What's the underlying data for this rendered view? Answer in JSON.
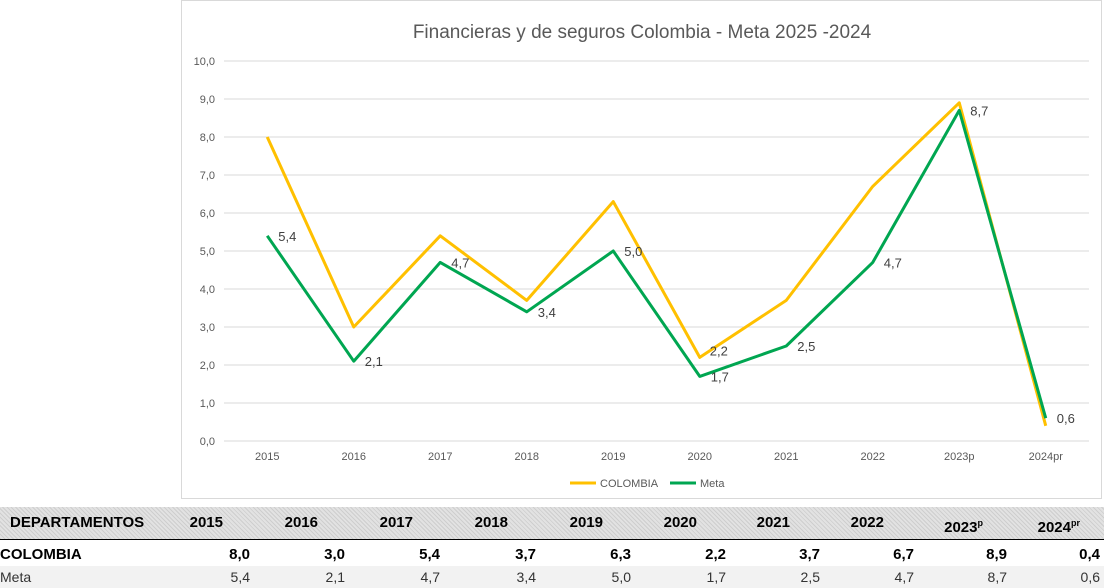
{
  "chart_data": {
    "type": "line",
    "title": "Financieras y de seguros Colombia - Meta 2025 -2024",
    "categories": [
      "2015",
      "2016",
      "2017",
      "2018",
      "2019",
      "2020",
      "2021",
      "2022",
      "2023p",
      "2024pr"
    ],
    "ylim": [
      0,
      10
    ],
    "yticks": [
      "0,0",
      "1,0",
      "2,0",
      "3,0",
      "4,0",
      "5,0",
      "6,0",
      "7,0",
      "8,0",
      "9,0",
      "10,0"
    ],
    "grid": true,
    "legend_position": "bottom",
    "series": [
      {
        "name": "COLOMBIA",
        "color": "#FFC000",
        "values": [
          8.0,
          3.0,
          5.4,
          3.7,
          6.3,
          2.2,
          3.7,
          6.7,
          8.9,
          0.4
        ],
        "labels": [
          "",
          "",
          "",
          "",
          "",
          "2,2",
          "",
          "",
          "",
          ""
        ]
      },
      {
        "name": "Meta",
        "color": "#00A651",
        "values": [
          5.4,
          2.1,
          4.7,
          3.4,
          5.0,
          1.7,
          2.5,
          4.7,
          8.7,
          0.6
        ],
        "labels": [
          "5,4",
          "2,1",
          "4,7",
          "3,4",
          "5,0",
          "1,7",
          "2,5",
          "4,7",
          "8,7",
          "0,6"
        ]
      }
    ]
  },
  "table": {
    "header_label": "DEPARTAMENTOS",
    "years": [
      {
        "base": "2015",
        "sup": ""
      },
      {
        "base": "2016",
        "sup": ""
      },
      {
        "base": "2017",
        "sup": ""
      },
      {
        "base": "2018",
        "sup": ""
      },
      {
        "base": "2019",
        "sup": ""
      },
      {
        "base": "2020",
        "sup": ""
      },
      {
        "base": "2021",
        "sup": ""
      },
      {
        "base": "2022",
        "sup": ""
      },
      {
        "base": "2023",
        "sup": "p"
      },
      {
        "base": "2024",
        "sup": "pr"
      }
    ],
    "rows": [
      {
        "name": "COLOMBIA",
        "values": [
          "8,0",
          "3,0",
          "5,4",
          "3,7",
          "6,3",
          "2,2",
          "3,7",
          "6,7",
          "8,9",
          "0,4"
        ]
      },
      {
        "name": "Meta",
        "values": [
          "5,4",
          "2,1",
          "4,7",
          "3,4",
          "5,0",
          "1,7",
          "2,5",
          "4,7",
          "8,7",
          "0,6"
        ]
      }
    ]
  }
}
